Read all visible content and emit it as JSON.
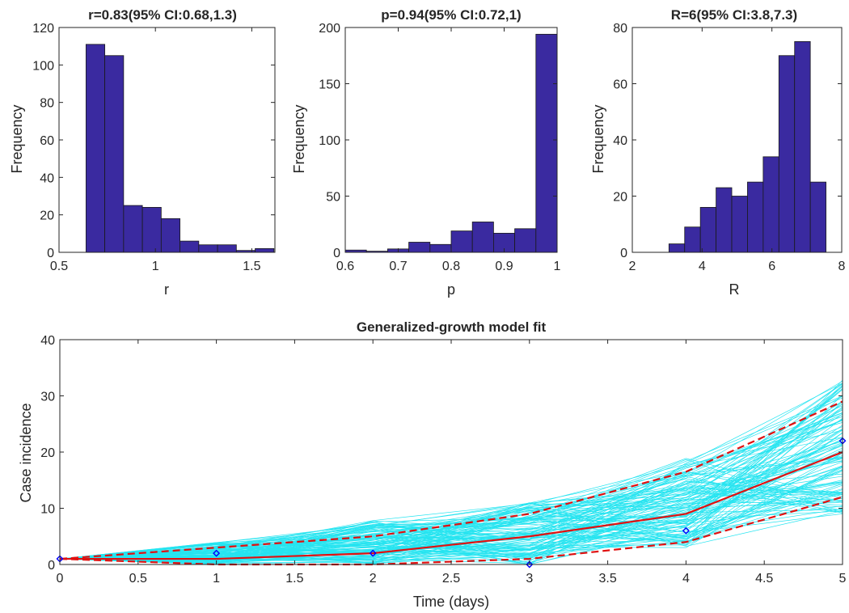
{
  "colors": {
    "bar_fill": "#3a2aa0",
    "bar_edge": "#1a1a1a",
    "fit_line": "#e01010",
    "ci_line": "#e01010",
    "ensemble": "#00e0ee",
    "data_marker": "#0000ff",
    "axis": "#262626"
  },
  "chart_data": [
    {
      "type": "bar",
      "title": "r=0.83(95% CI:0.68,1.3)",
      "xlabel": "r",
      "ylabel": "Frequency",
      "xlim": [
        0.5,
        1.62
      ],
      "ylim": [
        0,
        120
      ],
      "xticks": [
        0.5,
        1,
        1.5
      ],
      "xtick_labels": [
        "0.5",
        "1",
        "1.5"
      ],
      "yticks": [
        0,
        20,
        40,
        60,
        80,
        100,
        120
      ],
      "ytick_labels": [
        "0",
        "20",
        "40",
        "60",
        "80",
        "100",
        "120"
      ],
      "bin_edges": [
        0.64,
        0.7375,
        0.835,
        0.9325,
        1.03,
        1.1275,
        1.225,
        1.3225,
        1.42,
        1.5175,
        1.615
      ],
      "values": [
        111,
        105,
        25,
        24,
        18,
        6,
        4,
        4,
        1,
        2
      ]
    },
    {
      "type": "bar",
      "title": "p=0.94(95% CI:0.72,1)",
      "xlabel": "p",
      "ylabel": "Frequency",
      "xlim": [
        0.6,
        1.0
      ],
      "ylim": [
        0,
        200
      ],
      "xticks": [
        0.6,
        0.7,
        0.8,
        0.9,
        1.0
      ],
      "xtick_labels": [
        "0.6",
        "0.7",
        "0.8",
        "0.9",
        "1"
      ],
      "yticks": [
        0,
        50,
        100,
        150,
        200
      ],
      "ytick_labels": [
        "0",
        "50",
        "100",
        "150",
        "200"
      ],
      "bin_edges": [
        0.6,
        0.64,
        0.68,
        0.72,
        0.76,
        0.8,
        0.84,
        0.88,
        0.92,
        0.96,
        1.0
      ],
      "values": [
        2,
        1,
        3,
        9,
        7,
        19,
        27,
        17,
        21,
        194
      ]
    },
    {
      "type": "bar",
      "title": "R=6(95% CI:3.8,7.3)",
      "xlabel": "R",
      "ylabel": "Frequency",
      "xlim": [
        2,
        8
      ],
      "ylim": [
        0,
        80
      ],
      "xticks": [
        2,
        4,
        6,
        8
      ],
      "xtick_labels": [
        "2",
        "4",
        "6",
        "8"
      ],
      "yticks": [
        0,
        20,
        40,
        60,
        80
      ],
      "ytick_labels": [
        "0",
        "20",
        "40",
        "60",
        "80"
      ],
      "bin_edges": [
        3.05,
        3.5,
        3.95,
        4.4,
        4.85,
        5.3,
        5.75,
        6.2,
        6.65,
        7.1,
        7.55
      ],
      "values": [
        3,
        9,
        16,
        23,
        20,
        25,
        34,
        70,
        75,
        25
      ]
    },
    {
      "type": "line",
      "title": "Generalized-growth model fit",
      "xlabel": "Time (days)",
      "ylabel": "Case incidence",
      "xlim": [
        0,
        5
      ],
      "ylim": [
        0,
        40
      ],
      "xticks": [
        0,
        0.5,
        1,
        1.5,
        2,
        2.5,
        3,
        3.5,
        4,
        4.5,
        5
      ],
      "xtick_labels": [
        "0",
        "0.5",
        "1",
        "1.5",
        "2",
        "2.5",
        "3",
        "3.5",
        "4",
        "4.5",
        "5"
      ],
      "yticks": [
        0,
        10,
        20,
        30,
        40
      ],
      "ytick_labels": [
        "0",
        "10",
        "20",
        "30",
        "40"
      ],
      "x": [
        0,
        1,
        2,
        3,
        4,
        5
      ],
      "series": [
        {
          "values": [
            1,
            1,
            2,
            5,
            9,
            20
          ],
          "style": "solid"
        },
        {
          "values": [
            1,
            3,
            5,
            9,
            16.5,
            29
          ],
          "style": "dashed"
        },
        {
          "values": [
            1,
            0,
            0,
            1,
            4,
            12
          ],
          "style": "dashed"
        }
      ],
      "observed": {
        "values": [
          1,
          2,
          2,
          0,
          6,
          22
        ]
      },
      "ensemble_envelope": {
        "lower": [
          1,
          0,
          0,
          0,
          3,
          9
        ],
        "upper": [
          1,
          4,
          8,
          11,
          19,
          33
        ]
      }
    }
  ]
}
